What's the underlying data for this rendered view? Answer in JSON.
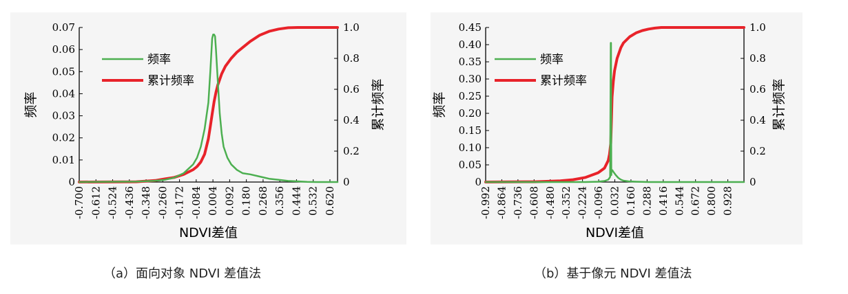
{
  "captions": {
    "a": "（a）面向对象 NDVI 差值法",
    "b": "（b）基于像元 NDVI 差值法"
  },
  "colors": {
    "frequency": "#4caf50",
    "cumulative": "#e8232a"
  },
  "chart_data": [
    {
      "type": "line",
      "xlabel": "NDVI差值",
      "ylabel_left": "频率",
      "ylabel_right": "累计频率",
      "xlim": [
        -0.7,
        0.66
      ],
      "ylim_left": [
        0,
        0.07
      ],
      "ylim_right": [
        0,
        1.0
      ],
      "x_ticks": [
        "-0.700",
        "-0.612",
        "-0.524",
        "-0.436",
        "-0.348",
        "-0.260",
        "-0.172",
        "-0.084",
        "0.004",
        "0.092",
        "0.180",
        "0.268",
        "0.356",
        "0.444",
        "0.532",
        "0.620"
      ],
      "y_left_ticks": [
        "0",
        "0.01",
        "0.02",
        "0.03",
        "0.04",
        "0.05",
        "0.06",
        "0.07"
      ],
      "y_right_ticks": [
        "0",
        "0.2",
        "0.4",
        "0.6",
        "0.8",
        "1.0"
      ],
      "legend": [
        "频率",
        "累计频率"
      ],
      "series": [
        {
          "name": "频率",
          "axis": "left",
          "x": [
            -0.7,
            -0.4,
            -0.3,
            -0.25,
            -0.2,
            -0.15,
            -0.1,
            -0.08,
            -0.06,
            -0.04,
            -0.02,
            -0.01,
            0.0,
            0.005,
            0.01,
            0.015,
            0.02,
            0.03,
            0.04,
            0.05,
            0.06,
            0.08,
            0.1,
            0.13,
            0.16,
            0.2,
            0.25,
            0.3,
            0.35,
            0.4,
            0.45,
            0.5,
            0.55,
            0.6,
            0.66
          ],
          "values": [
            0,
            0.0002,
            0.0006,
            0.001,
            0.002,
            0.004,
            0.008,
            0.011,
            0.016,
            0.024,
            0.036,
            0.05,
            0.065,
            0.0668,
            0.0668,
            0.066,
            0.06,
            0.045,
            0.031,
            0.022,
            0.016,
            0.011,
            0.008,
            0.0055,
            0.004,
            0.0035,
            0.0025,
            0.0015,
            0.001,
            0.0005,
            0.0003,
            0.0001,
            0,
            0,
            0
          ]
        },
        {
          "name": "累计频率",
          "axis": "right",
          "x": [
            -0.7,
            -0.4,
            -0.3,
            -0.25,
            -0.2,
            -0.15,
            -0.1,
            -0.08,
            -0.06,
            -0.04,
            -0.02,
            -0.01,
            0.0,
            0.01,
            0.02,
            0.03,
            0.05,
            0.07,
            0.1,
            0.13,
            0.16,
            0.2,
            0.25,
            0.3,
            0.35,
            0.4,
            0.45,
            0.5,
            0.55,
            0.66
          ],
          "values": [
            0,
            0.002,
            0.01,
            0.02,
            0.03,
            0.05,
            0.08,
            0.1,
            0.13,
            0.18,
            0.28,
            0.36,
            0.44,
            0.52,
            0.58,
            0.63,
            0.7,
            0.75,
            0.8,
            0.84,
            0.87,
            0.91,
            0.95,
            0.975,
            0.99,
            0.998,
            1.0,
            1.0,
            1.0,
            1.0
          ]
        }
      ]
    },
    {
      "type": "line",
      "xlabel": "NDVI差值",
      "ylabel_left": "频率",
      "ylabel_right": "累计频率",
      "xlim": [
        -0.992,
        1.056
      ],
      "ylim_left": [
        0,
        0.45
      ],
      "ylim_right": [
        0,
        1.0
      ],
      "x_ticks": [
        "-0.992",
        "-0.864",
        "-0.736",
        "-0.608",
        "-0.480",
        "-0.352",
        "-0.224",
        "-0.096",
        "0.032",
        "0.160",
        "0.288",
        "0.416",
        "0.544",
        "0.672",
        "0.800",
        "0.928"
      ],
      "y_left_ticks": [
        "0",
        "0.05",
        "0.10",
        "0.15",
        "0.20",
        "0.25",
        "0.30",
        "0.35",
        "0.40",
        "0.45"
      ],
      "y_right_ticks": [
        "0",
        "0.2",
        "0.4",
        "0.6",
        "0.8",
        "1.0"
      ],
      "legend": [
        "频率",
        "累计频率"
      ],
      "series": [
        {
          "name": "频率",
          "axis": "left",
          "x": [
            -0.992,
            -0.2,
            -0.1,
            -0.05,
            -0.02,
            -0.01,
            -0.005,
            0.0,
            0.002,
            0.004,
            0.006,
            0.01,
            0.015,
            0.02,
            0.04,
            0.06,
            0.08,
            0.1,
            0.14,
            0.2,
            0.3,
            1.056
          ],
          "values": [
            0,
            0,
            0.001,
            0.003,
            0.007,
            0.012,
            0.015,
            0.405,
            0.405,
            0.02,
            0.032,
            0.035,
            0.033,
            0.03,
            0.02,
            0.012,
            0.007,
            0.004,
            0.002,
            0.001,
            0,
            0
          ]
        },
        {
          "name": "累计频率",
          "axis": "right",
          "x": [
            -0.992,
            -0.6,
            -0.4,
            -0.3,
            -0.2,
            -0.1,
            -0.05,
            -0.02,
            -0.01,
            0.0,
            0.005,
            0.01,
            0.02,
            0.03,
            0.05,
            0.08,
            0.1,
            0.15,
            0.2,
            0.25,
            0.3,
            0.35,
            0.4,
            0.45,
            1.056
          ],
          "values": [
            0,
            0.002,
            0.008,
            0.015,
            0.03,
            0.06,
            0.09,
            0.14,
            0.18,
            0.25,
            0.4,
            0.55,
            0.65,
            0.72,
            0.8,
            0.87,
            0.9,
            0.94,
            0.965,
            0.98,
            0.99,
            0.996,
            1.0,
            1.0,
            1.0
          ]
        }
      ]
    }
  ]
}
